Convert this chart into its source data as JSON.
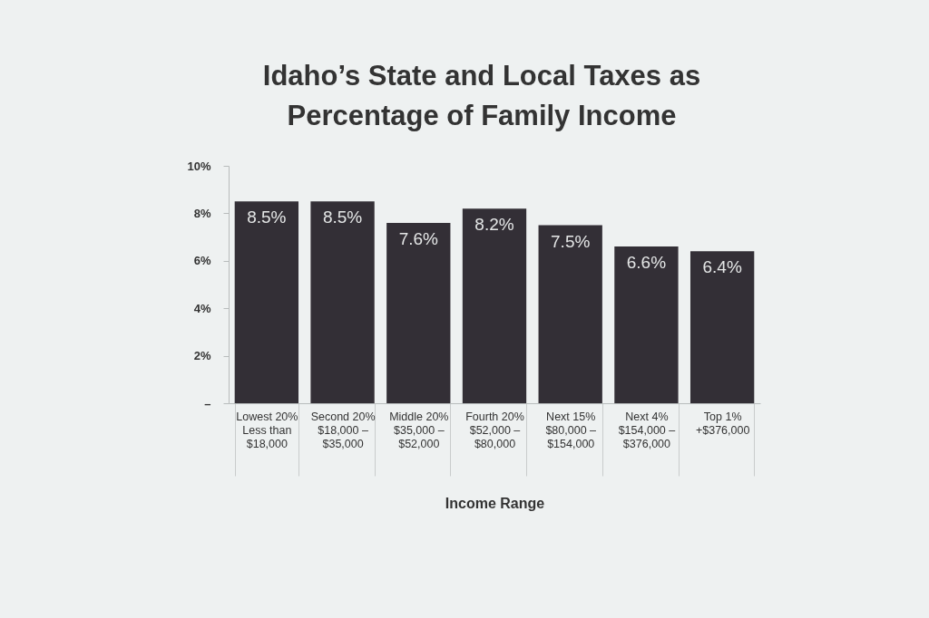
{
  "chart_data": {
    "type": "bar",
    "title": "Idaho’s State and Local Taxes as Percentage of Family Income",
    "xlabel": "Income Range",
    "categories": [
      "Lowest 20%\nLess than\n$18,000",
      "Second 20%\n$18,000 –\n$35,000",
      "Middle 20%\n$35,000 –\n$52,000",
      "Fourth 20%\n$52,000 –\n$80,000",
      "Next 15%\n$80,000 –\n$154,000",
      "Next 4%\n$154,000 –\n$376,000",
      "Top 1%\n+$376,000"
    ],
    "values": [
      8.5,
      8.5,
      7.6,
      8.2,
      7.5,
      6.6,
      6.4
    ],
    "color": "#332f36",
    "value_labels": [
      "8.5%",
      "8.5%",
      "7.6%",
      "8.2%",
      "7.5%",
      "6.6%",
      "6.4%"
    ],
    "ylim": [
      0,
      10
    ],
    "yticks": [
      {
        "value": 0,
        "label": "–"
      },
      {
        "value": 2,
        "label": "2%"
      },
      {
        "value": 4,
        "label": "4%"
      },
      {
        "value": 6,
        "label": "6%"
      },
      {
        "value": 8,
        "label": "8%"
      },
      {
        "value": 10,
        "label": "10%"
      }
    ]
  }
}
